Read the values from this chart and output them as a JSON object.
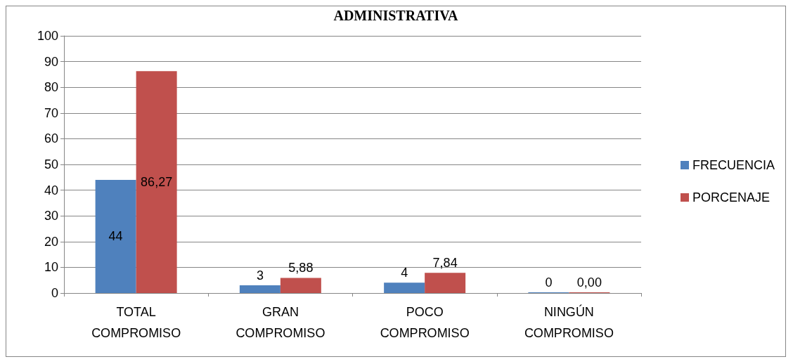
{
  "chart_data": {
    "type": "bar",
    "title": "ADMINISTRATIVA",
    "categories": [
      "TOTAL\nCOMPROMISO",
      "GRAN\nCOMPROMISO",
      "POCO\nCOMPROMISO",
      "NINGÚN\nCOMPROMISO"
    ],
    "series": [
      {
        "name": "FRECUENCIA",
        "color": "#4f81bd",
        "values": [
          44,
          3,
          4,
          0
        ],
        "value_labels": [
          "44",
          "3",
          "4",
          "0"
        ]
      },
      {
        "name": "PORCENAJE",
        "color": "#c0504d",
        "values": [
          86.27,
          5.88,
          7.84,
          0
        ],
        "value_labels": [
          "86,27",
          "5,88",
          "7,84",
          "0,00"
        ]
      }
    ],
    "ylim": [
      0,
      100
    ],
    "yticks": [
      0,
      10,
      20,
      30,
      40,
      50,
      60,
      70,
      80,
      90,
      100
    ],
    "grid": "y",
    "legend": "right"
  }
}
